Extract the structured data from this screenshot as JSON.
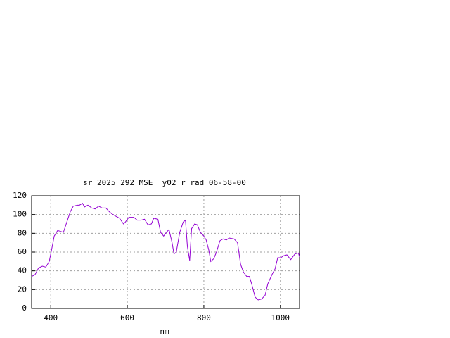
{
  "chart_data": {
    "type": "line",
    "title": "sr_2025_292_MSE__y02_r_rad 06-58-00",
    "xlabel": "nm",
    "x": [
      350,
      359,
      368,
      378,
      387,
      396,
      402,
      409,
      418,
      426,
      433,
      442,
      451,
      459,
      470,
      475,
      483,
      488,
      497,
      507,
      516,
      525,
      534,
      544,
      553,
      562,
      571,
      580,
      590,
      595,
      604,
      617,
      626,
      636,
      645,
      654,
      663,
      669,
      680,
      687,
      695,
      702,
      709,
      717,
      722,
      728,
      737,
      746,
      752,
      757,
      763,
      768,
      776,
      783,
      791,
      800,
      806,
      813,
      818,
      826,
      833,
      842,
      850,
      859,
      866,
      879,
      888,
      896,
      903,
      912,
      919,
      925,
      934,
      942,
      951,
      960,
      967,
      978,
      986,
      993,
      1001,
      1008,
      1017,
      1027,
      1038,
      1047,
      1050
    ],
    "series": [
      {
        "color": "#9400d3",
        "values": [
          34,
          36,
          43,
          45,
          44,
          50,
          62,
          77,
          83,
          82,
          81,
          92,
          103,
          109,
          110,
          110,
          112,
          108,
          110,
          107,
          106,
          109,
          107,
          107,
          103,
          100,
          98,
          96,
          90,
          92,
          97,
          97,
          94,
          94,
          95,
          89,
          90,
          96,
          95,
          81,
          77,
          81,
          84,
          70,
          58,
          60,
          81,
          92,
          94,
          66,
          51,
          85,
          90,
          89,
          81,
          77,
          73,
          62,
          50,
          53,
          60,
          72,
          74,
          73,
          75,
          74,
          70,
          47,
          39,
          34,
          34,
          26,
          12,
          9,
          10,
          14,
          26,
          36,
          42,
          54,
          54,
          56,
          57,
          52,
          58,
          59,
          55
        ]
      }
    ],
    "xlim": [
      350,
      1050
    ],
    "ylim": [
      0,
      120
    ],
    "xticks": [
      400,
      600,
      800,
      1000
    ],
    "yticks": [
      0,
      20,
      40,
      60,
      80,
      100,
      120
    ],
    "grid": true
  }
}
